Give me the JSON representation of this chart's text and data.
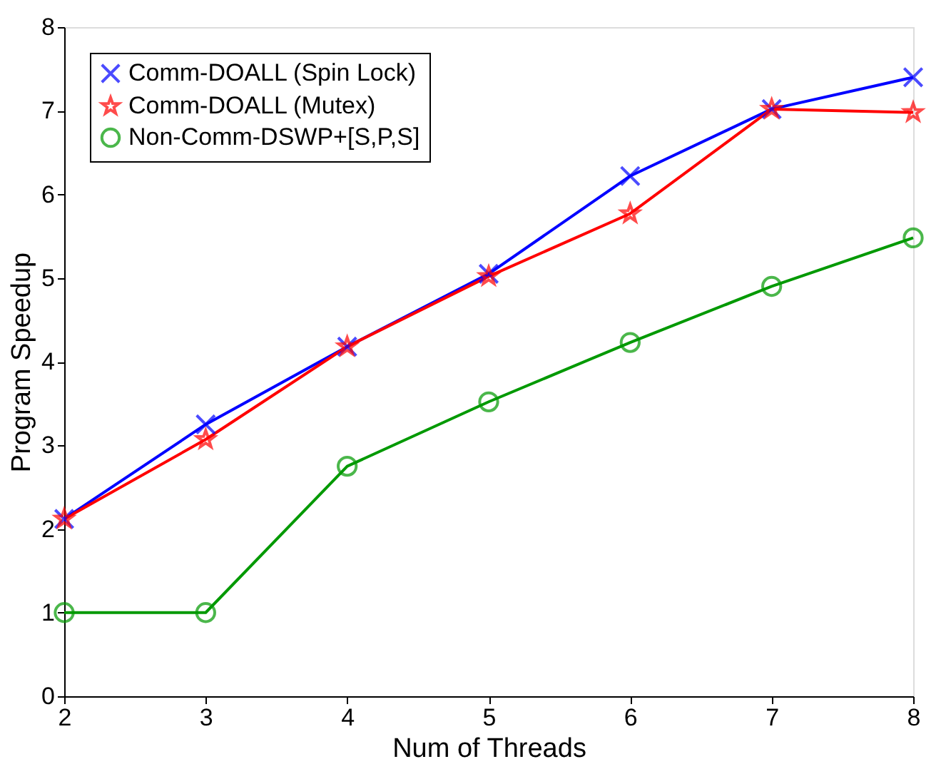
{
  "chart_data": {
    "type": "line",
    "xlabel": "Num of Threads",
    "ylabel": "Program Speedup",
    "x": [
      2,
      3,
      4,
      5,
      6,
      7,
      8
    ],
    "series": [
      {
        "name": "Comm-DOALL (Spin Lock)",
        "color": "#0000ff",
        "marker": "cross",
        "values": [
          2.12,
          3.25,
          4.18,
          5.05,
          6.22,
          7.02,
          7.4
        ]
      },
      {
        "name": "Comm-DOALL (Mutex)",
        "color": "#ff0000",
        "marker": "star",
        "values": [
          2.12,
          3.07,
          4.18,
          5.02,
          5.77,
          7.02,
          6.98
        ]
      },
      {
        "name": "Non-Comm-DSWP+[S,P,S]",
        "color": "#009900",
        "marker": "circle",
        "values": [
          1,
          1,
          2.75,
          3.52,
          4.23,
          4.9,
          5.48
        ]
      }
    ],
    "xlim": [
      2,
      8
    ],
    "xticks": [
      2,
      3,
      4,
      5,
      6,
      7,
      8
    ],
    "ylim": [
      0,
      8
    ],
    "yticks": [
      0,
      1,
      2,
      3,
      4,
      5,
      6,
      7,
      8
    ],
    "grid": false,
    "legend": "top left",
    "line_style": "solid"
  }
}
